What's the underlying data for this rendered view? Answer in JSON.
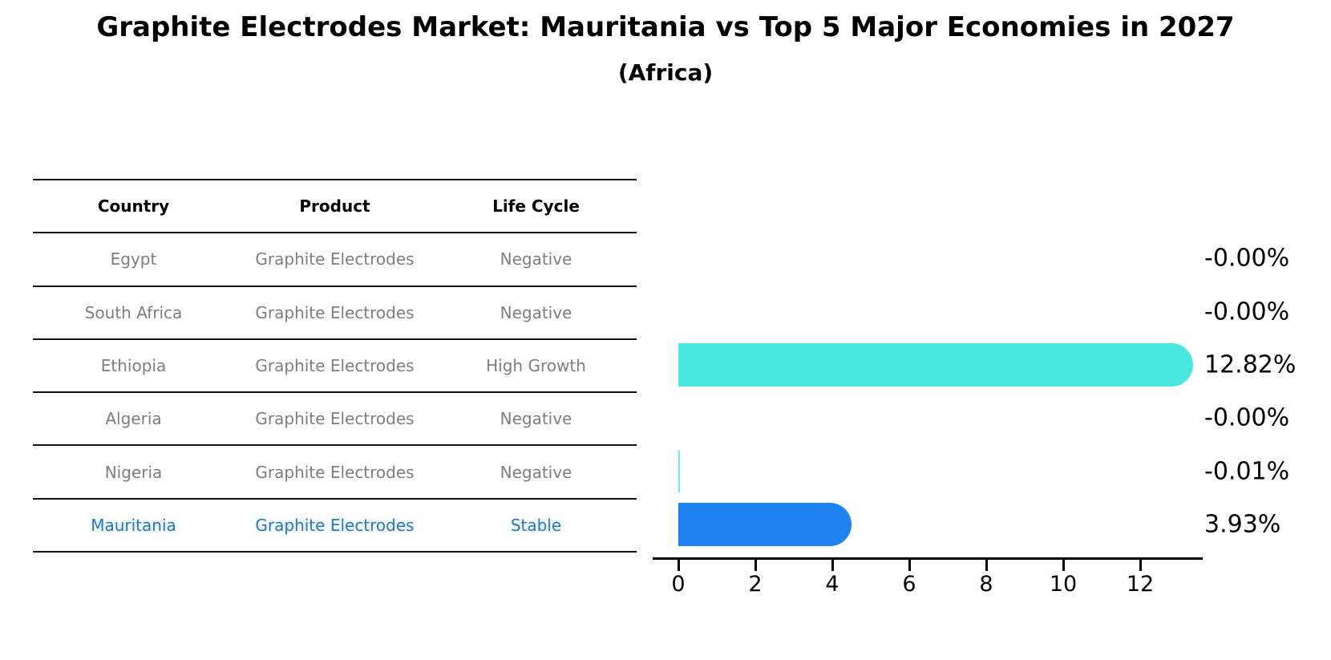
{
  "title": "Graphite Electrodes Market: Mauritania vs Top 5 Major Economies in 2027",
  "subtitle": "(Africa)",
  "table": {
    "headers": [
      "Country",
      "Product",
      "Life Cycle"
    ],
    "rows": [
      {
        "country": "Egypt",
        "product": "Graphite Electrodes",
        "life_cycle": "Negative",
        "highlight": false
      },
      {
        "country": "South Africa",
        "product": "Graphite Electrodes",
        "life_cycle": "Negative",
        "highlight": false
      },
      {
        "country": "Ethiopia",
        "product": "Graphite Electrodes",
        "life_cycle": "High Growth",
        "highlight": false
      },
      {
        "country": "Algeria",
        "product": "Graphite Electrodes",
        "life_cycle": "Negative",
        "highlight": false
      },
      {
        "country": "Nigeria",
        "product": "Graphite Electrodes",
        "life_cycle": "Negative",
        "highlight": false
      },
      {
        "country": "Mauritania",
        "product": "Graphite Electrodes",
        "life_cycle": "Stable",
        "highlight": true
      }
    ]
  },
  "chart_data": {
    "type": "bar",
    "orientation": "horizontal",
    "categories": [
      "Egypt",
      "South Africa",
      "Ethiopia",
      "Algeria",
      "Nigeria",
      "Mauritania"
    ],
    "values": [
      -0.0,
      -0.0,
      12.82,
      -0.0,
      -0.01,
      3.93
    ],
    "value_labels": [
      "-0.00%",
      "-0.00%",
      "12.82%",
      "-0.00%",
      "-0.01%",
      "3.93%"
    ],
    "xticks": [
      0,
      2,
      4,
      6,
      8,
      10,
      12
    ],
    "xlim": [
      -0.7,
      13.6
    ],
    "title": "",
    "xlabel": "",
    "ylabel": "",
    "grid": false,
    "legend": "none",
    "bar_color_regular": "#4AE7E1",
    "bar_color_highlight": "#1E82F0",
    "highlight_index": 5
  },
  "colors": {
    "title_text": "#000000",
    "table_text": "#7E7E7E",
    "highlight_text": "#2878C0",
    "line": "#111111"
  }
}
